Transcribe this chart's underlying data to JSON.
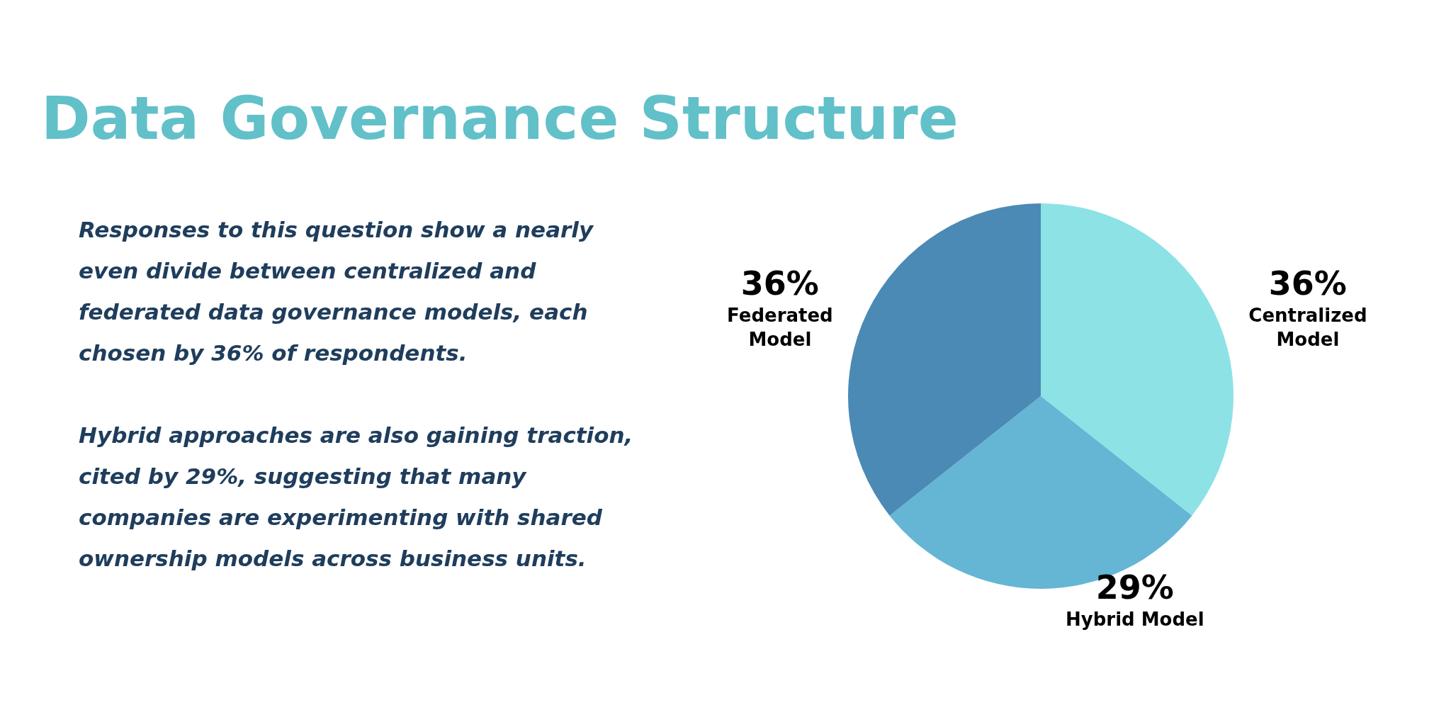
{
  "chart_data": {
    "type": "pie",
    "title": "Data Governance Structure",
    "categories": [
      "Centralized Model",
      "Hybrid Model",
      "Federated Model"
    ],
    "values": [
      36,
      29,
      36
    ],
    "value_labels": [
      "36%",
      "29%",
      "36%"
    ],
    "colors": [
      "#8de2e6",
      "#65b5d4",
      "#4a8ab5"
    ],
    "annotations": [
      "Responses to this question show a nearly even divide between centralized and federated data governance models, each chosen by 36% of respondents.",
      "Hybrid approaches are also gaining traction, cited by 29%, suggesting that many companies are experimenting with shared ownership models across business units."
    ],
    "legend": false
  }
}
